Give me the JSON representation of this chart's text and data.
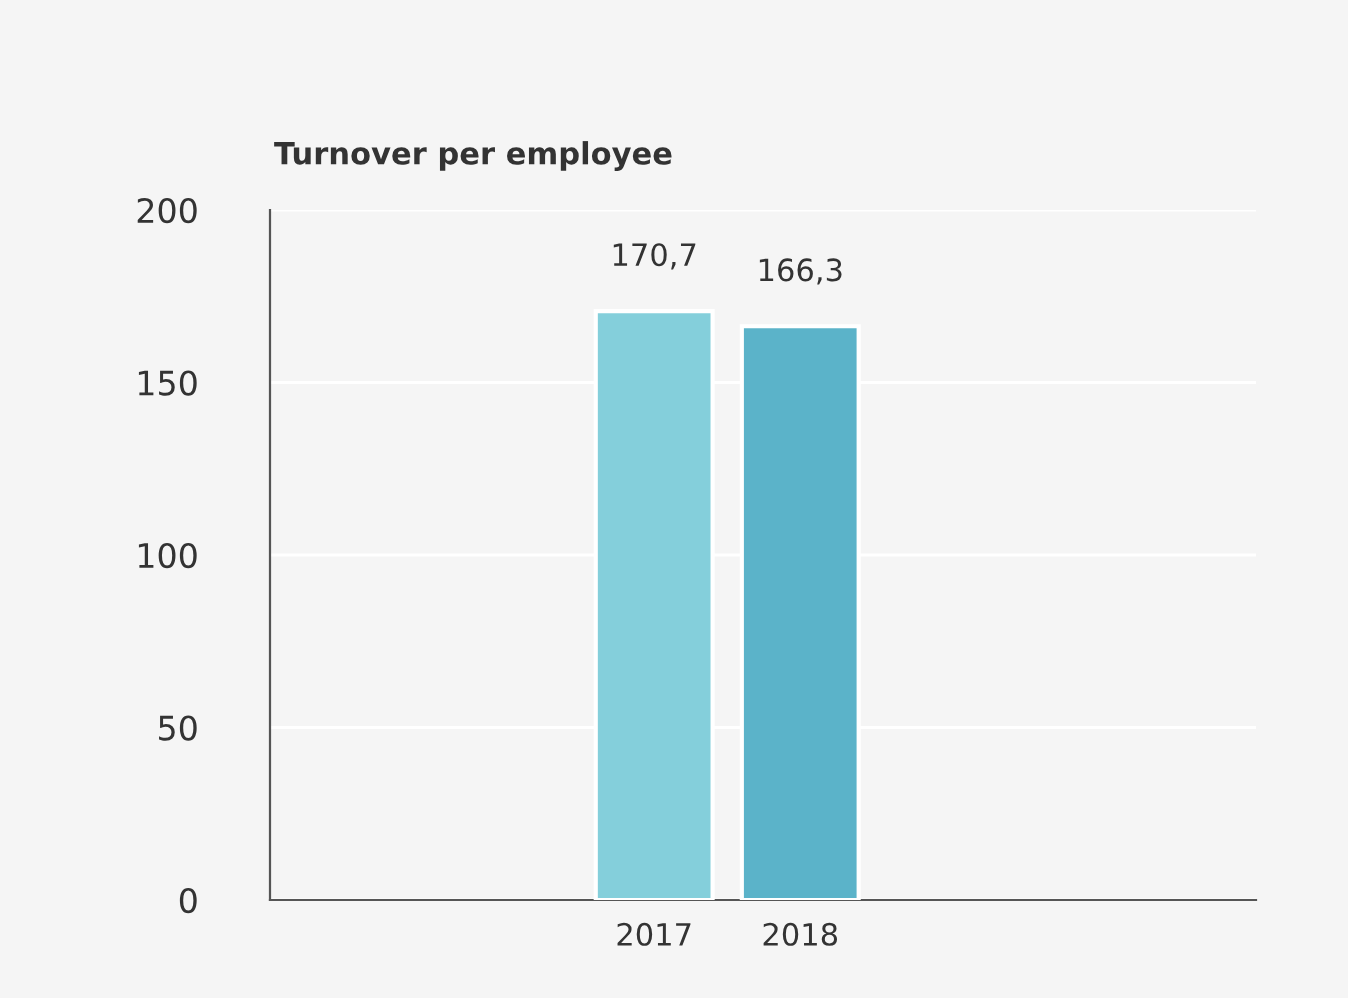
{
  "chart_data": {
    "type": "bar",
    "title": "Turnover per employee",
    "categories": [
      "2017",
      "2018"
    ],
    "values": [
      170.7,
      166.3
    ],
    "colors": [
      "#84cfdb",
      "#5bb3c9"
    ],
    "value_labels": [
      "170,7",
      "166,3"
    ],
    "ylim": [
      0,
      200
    ],
    "yticks": [
      0,
      50,
      100,
      150,
      200
    ],
    "grid": "y"
  }
}
